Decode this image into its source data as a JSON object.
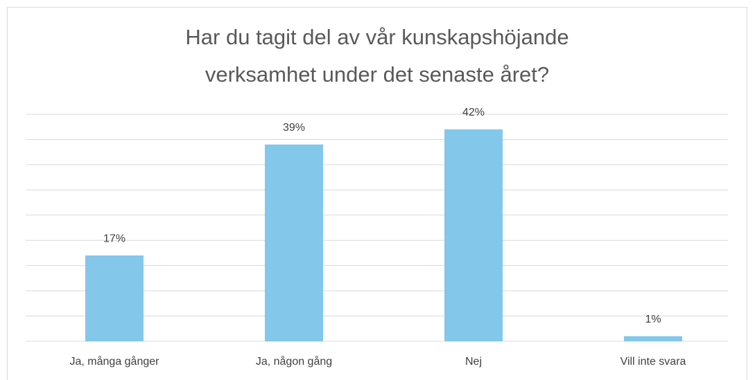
{
  "chart_data": {
    "type": "bar",
    "title": [
      "Har du tagit del av vår kunskapshöjande",
      "verksamhet under det senaste året?"
    ],
    "categories": [
      "Ja, många gånger",
      "Ja, någon gång",
      "Nej",
      "Vill inte svara"
    ],
    "values": [
      17,
      39,
      42,
      1
    ],
    "value_labels": [
      "17%",
      "39%",
      "42%",
      "1%"
    ],
    "color": "#83c7ea",
    "ylim": [
      0,
      45
    ],
    "yticks": [
      0,
      5,
      10,
      15,
      20,
      25,
      30,
      35,
      40,
      45
    ],
    "grid": true
  }
}
